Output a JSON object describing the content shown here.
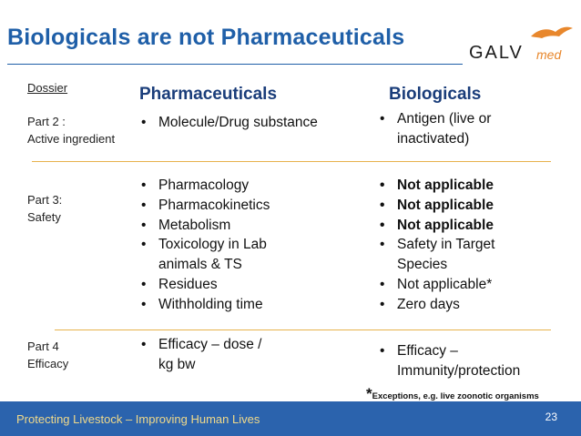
{
  "slide": {
    "title": "Biologicals are not Pharmaceuticals",
    "logo": {
      "text_main": "GALV",
      "text_sub": "med",
      "icon": "bird-logo-icon",
      "accent_color": "#e8872c"
    },
    "dossier_label": "Dossier",
    "columns": {
      "pharma": "Pharmaceuticals",
      "bio": "Biologicals"
    },
    "rows": [
      {
        "label_line1": "Part 2 :",
        "label_line2": "Active ingredient",
        "pharma": [
          "Molecule/Drug substance"
        ],
        "bio": [
          "Antigen (live or inactivated)"
        ]
      },
      {
        "label_line1": "Part 3:",
        "label_line2": "Safety",
        "pharma": [
          "Pharmacology",
          "Pharmacokinetics",
          "Metabolism",
          "Toxicology in Lab animals & TS",
          "Residues",
          "Withholding time"
        ],
        "bio": [
          "Not applicable",
          "Not applicable",
          "Not applicable",
          "Safety in Target Species",
          "Not applicable*",
          "Zero days"
        ]
      },
      {
        "label_line1": "Part 4",
        "label_line2": "Efficacy",
        "pharma": [
          "Efficacy – dose / kg bw"
        ],
        "bio": [
          "Efficacy – Immunity/protection"
        ]
      }
    ],
    "footnote_star": "*",
    "footnote_text": "Exceptions, e.g. live zoonotic organisms",
    "footer_text": "Protecting Livestock – Improving Human Lives",
    "page_number": "23",
    "colors": {
      "title": "#1f5fa8",
      "divider": "#e7b24c",
      "footer_bg": "#2b63ad",
      "footer_text": "#f0d98a"
    }
  }
}
